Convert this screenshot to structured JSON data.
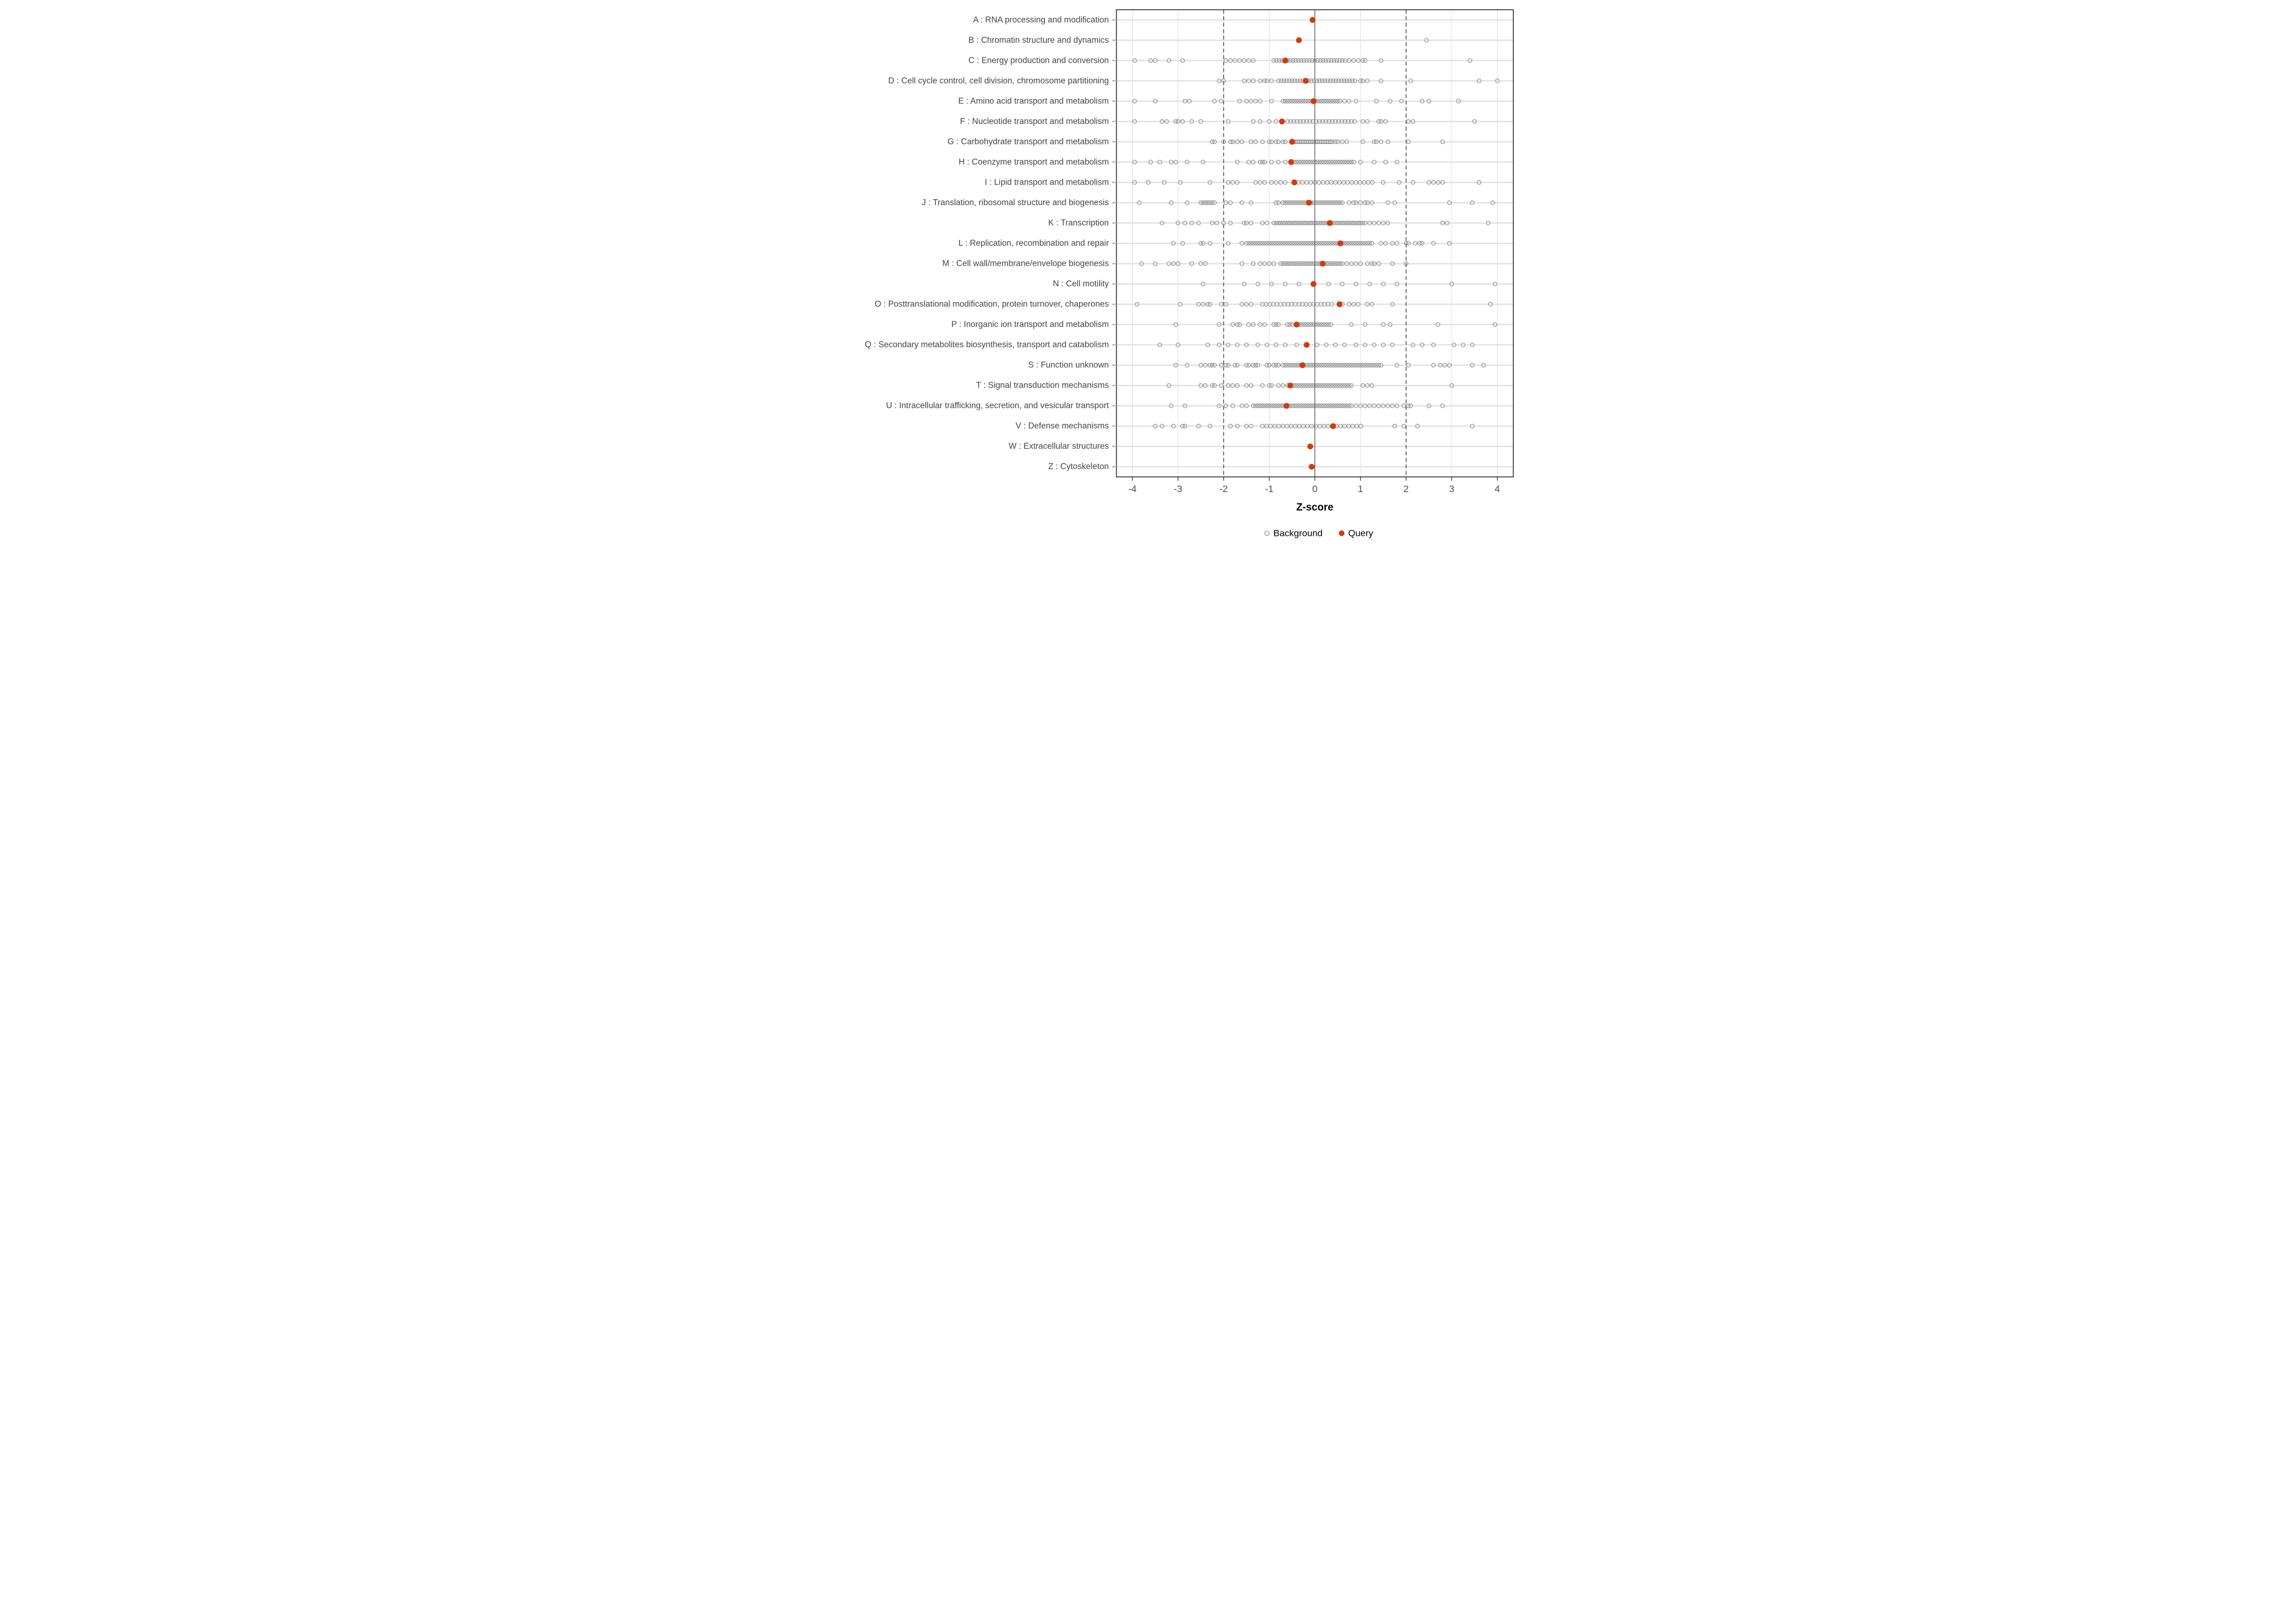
{
  "chart_data": {
    "type": "scatter",
    "variant": "horizontal-strip-plot",
    "title": "",
    "xlabel": "Z-score",
    "ylabel": "",
    "x_ticks": [
      -4,
      -3,
      -2,
      -1,
      0,
      1,
      2,
      3,
      4
    ],
    "xlim": [
      -4.35,
      4.35
    ],
    "grid": "on",
    "reference_lines": {
      "solid": [
        0
      ],
      "dashed": [
        -2,
        2
      ]
    },
    "legend_position": "bottom",
    "legend": [
      {
        "label": "Background",
        "marker": "open-circle",
        "color": "#8A8A8A"
      },
      {
        "label": "Query",
        "marker": "filled-circle",
        "color": "#D23B0F"
      }
    ],
    "colors": {
      "query": "#D23B0F",
      "background_stroke": "#8A8A8A",
      "grid": "#E2E2E2",
      "reference": "#4A4A4A",
      "axis_text": "#4D4D4D",
      "category_text": "#444444",
      "panel_border": "#2D2D2D",
      "axis_title": "#000000",
      "tick_mark_x": "#333333",
      "tick_mark_y": "#B5B5B5"
    },
    "categories": [
      {
        "code": "A",
        "label": "A : RNA processing and modification",
        "query": -0.05,
        "background": []
      },
      {
        "code": "B",
        "label": "B : Chromatin structure and dynamics",
        "query": -0.35,
        "background": [
          2.45
        ]
      },
      {
        "code": "C",
        "label": "C : Energy production and conversion",
        "query": -0.65,
        "background": [
          -3.95,
          -3.6,
          -3.5,
          -3.2,
          -2.9,
          -1.95,
          -1.85,
          -1.75,
          -1.65,
          -1.55,
          -1.45,
          -1.35,
          -0.9,
          -0.84,
          -0.78,
          -0.72,
          -0.66,
          -0.6,
          -0.54,
          -0.48,
          -0.42,
          -0.36,
          -0.3,
          -0.24,
          -0.18,
          -0.12,
          -0.06,
          0,
          0.06,
          0.12,
          0.18,
          0.24,
          0.3,
          0.36,
          0.42,
          0.48,
          0.54,
          0.6,
          0.66,
          0.75,
          0.85,
          0.95,
          1.05,
          1.1,
          1.45,
          3.4
        ]
      },
      {
        "code": "D",
        "label": "D : Cell cycle control, cell division, chromosome partitioning",
        "query": -0.2,
        "background": [
          -2.1,
          -2,
          -1.55,
          -1.45,
          -1.35,
          -1.2,
          -1.1,
          -1.05,
          -0.95,
          -0.8,
          -0.74,
          -0.68,
          -0.62,
          -0.56,
          -0.5,
          -0.44,
          -0.38,
          -0.32,
          -0.26,
          -0.2,
          -0.14,
          -0.08,
          -0.02,
          0.04,
          0.1,
          0.16,
          0.22,
          0.28,
          0.34,
          0.4,
          0.46,
          0.52,
          0.58,
          0.64,
          0.7,
          0.76,
          0.82,
          0.88,
          1,
          1.05,
          1.15,
          1.45,
          2.1,
          3.6,
          4
        ]
      },
      {
        "code": "E",
        "label": "E : Amino acid transport and metabolism",
        "query": -0.03,
        "background": [
          -3.95,
          -3.5,
          -2.85,
          -2.75,
          -2.2,
          -2.05,
          -1.65,
          -1.5,
          -1.4,
          -1.3,
          -1.2,
          -0.95,
          -0.7,
          -0.65,
          -0.6,
          -0.55,
          -0.5,
          -0.45,
          -0.4,
          -0.35,
          -0.3,
          -0.25,
          -0.2,
          -0.15,
          -0.1,
          -0.05,
          0,
          0.05,
          0.1,
          0.15,
          0.2,
          0.25,
          0.3,
          0.35,
          0.4,
          0.45,
          0.5,
          0.55,
          0.65,
          0.75,
          0.9,
          1.35,
          1.65,
          1.9,
          2.35,
          2.5,
          3.15
        ]
      },
      {
        "code": "F",
        "label": "F : Nucleotide transport and metabolism",
        "query": -0.72,
        "background": [
          -3.95,
          -3.35,
          -3.25,
          -3.05,
          -3,
          -2.9,
          -2.7,
          -2.5,
          -1.9,
          -1.35,
          -1.2,
          -1,
          -0.85,
          -0.6,
          -0.53,
          -0.46,
          -0.39,
          -0.32,
          -0.25,
          -0.18,
          -0.11,
          -0.04,
          0.03,
          0.1,
          0.17,
          0.24,
          0.31,
          0.38,
          0.45,
          0.52,
          0.59,
          0.66,
          0.73,
          0.8,
          0.87,
          1.05,
          1.15,
          1.4,
          1.45,
          1.55,
          2.05,
          2.15,
          3.5
        ]
      },
      {
        "code": "G",
        "label": "G : Carbohydrate transport and metabolism",
        "query": -0.5,
        "background": [
          -2.25,
          -2.2,
          -2,
          -1.85,
          -1.8,
          -1.7,
          -1.6,
          -1.4,
          -1.3,
          -1.15,
          -1,
          -0.95,
          -0.85,
          -0.8,
          -0.7,
          -0.65,
          -0.5,
          -0.46,
          -0.42,
          -0.38,
          -0.34,
          -0.3,
          -0.26,
          -0.22,
          -0.18,
          -0.14,
          -0.1,
          -0.06,
          -0.02,
          0.02,
          0.06,
          0.1,
          0.14,
          0.18,
          0.22,
          0.26,
          0.3,
          0.34,
          0.38,
          0.45,
          0.5,
          0.6,
          0.7,
          1.05,
          1.3,
          1.35,
          1.45,
          1.6,
          2.05,
          2.8
        ]
      },
      {
        "code": "H",
        "label": "H : Coenzyme transport and metabolism",
        "query": -0.52,
        "background": [
          -3.95,
          -3.6,
          -3.4,
          -3.15,
          -3.05,
          -2.8,
          -2.45,
          -1.7,
          -1.45,
          -1.35,
          -1.2,
          -1.15,
          -1.1,
          -0.95,
          -0.8,
          -0.65,
          -0.45,
          -0.4,
          -0.35,
          -0.3,
          -0.25,
          -0.2,
          -0.15,
          -0.1,
          -0.05,
          0,
          0.05,
          0.1,
          0.15,
          0.2,
          0.25,
          0.3,
          0.35,
          0.4,
          0.45,
          0.5,
          0.55,
          0.6,
          0.65,
          0.7,
          0.75,
          0.8,
          0.85,
          1,
          1.3,
          1.55,
          1.8
        ]
      },
      {
        "code": "I",
        "label": "I : Lipid transport and metabolism",
        "query": -0.45,
        "background": [
          -3.95,
          -3.65,
          -3.3,
          -2.95,
          -2.3,
          -1.9,
          -1.8,
          -1.7,
          -1.3,
          -1.2,
          -1.1,
          -0.95,
          -0.85,
          -0.75,
          -0.65,
          -0.45,
          -0.36,
          -0.27,
          -0.18,
          -0.09,
          0,
          0.09,
          0.18,
          0.27,
          0.36,
          0.45,
          0.54,
          0.63,
          0.72,
          0.81,
          0.9,
          0.99,
          1.08,
          1.17,
          1.26,
          1.5,
          1.85,
          2.15,
          2.5,
          2.6,
          2.7,
          2.8,
          3.6
        ]
      },
      {
        "code": "J",
        "label": "J : Translation, ribosomal structure and biogenesis",
        "query": -0.13,
        "background": [
          -3.85,
          -3.15,
          -2.8,
          -2.5,
          -2.45,
          -2.4,
          -2.35,
          -2.3,
          -2.25,
          -2.2,
          -1.95,
          -1.85,
          -1.6,
          -1.4,
          -0.85,
          -0.8,
          -0.7,
          -0.65,
          -0.6,
          -0.55,
          -0.5,
          -0.45,
          -0.4,
          -0.35,
          -0.3,
          -0.25,
          -0.2,
          -0.15,
          -0.1,
          -0.05,
          0,
          0.05,
          0.1,
          0.15,
          0.2,
          0.25,
          0.3,
          0.35,
          0.4,
          0.45,
          0.5,
          0.55,
          0.6,
          0.75,
          0.85,
          0.9,
          1,
          1.1,
          1.15,
          1.25,
          1.6,
          1.75,
          2.95,
          3.45,
          3.9
        ]
      },
      {
        "code": "K",
        "label": "K : Transcription",
        "query": 0.33,
        "background": [
          -3.35,
          -3,
          -2.85,
          -2.7,
          -2.55,
          -2.25,
          -2.15,
          -2,
          -1.85,
          -1.55,
          -1.5,
          -1.4,
          -1.15,
          -1.05,
          -0.9,
          -0.85,
          -0.8,
          -0.75,
          -0.7,
          -0.65,
          -0.6,
          -0.55,
          -0.5,
          -0.45,
          -0.4,
          -0.35,
          -0.3,
          -0.25,
          -0.2,
          -0.15,
          -0.1,
          -0.05,
          0,
          0.05,
          0.1,
          0.15,
          0.2,
          0.25,
          0.3,
          0.35,
          0.4,
          0.45,
          0.5,
          0.55,
          0.6,
          0.65,
          0.7,
          0.75,
          0.8,
          0.85,
          0.9,
          0.95,
          1,
          1.05,
          1.1,
          1.2,
          1.3,
          1.4,
          1.5,
          1.6,
          2.8,
          2.9,
          3.8
        ]
      },
      {
        "code": "L",
        "label": "L : Replication, recombination and repair",
        "query": 0.56,
        "background": [
          -3.1,
          -2.9,
          -2.5,
          -2.45,
          -2.3,
          -1.9,
          -1.6,
          -1.5,
          -1.45,
          -1.4,
          -1.35,
          -1.3,
          -1.25,
          -1.2,
          -1.15,
          -1.1,
          -1.05,
          -1,
          -0.95,
          -0.9,
          -0.85,
          -0.8,
          -0.75,
          -0.7,
          -0.65,
          -0.6,
          -0.55,
          -0.5,
          -0.45,
          -0.4,
          -0.35,
          -0.3,
          -0.25,
          -0.2,
          -0.15,
          -0.1,
          -0.05,
          0,
          0.05,
          0.1,
          0.15,
          0.2,
          0.25,
          0.3,
          0.35,
          0.4,
          0.45,
          0.5,
          0.55,
          0.6,
          0.65,
          0.7,
          0.75,
          0.8,
          0.85,
          0.9,
          0.95,
          1,
          1.05,
          1.1,
          1.15,
          1.2,
          1.25,
          1.45,
          1.55,
          1.7,
          1.8,
          2,
          2.05,
          2.2,
          2.3,
          2.35,
          2.6,
          2.95
        ]
      },
      {
        "code": "M",
        "label": "M : Cell wall/membrane/envelope biogenesis",
        "query": 0.17,
        "background": [
          -3.8,
          -3.5,
          -3.2,
          -3.1,
          -3,
          -2.7,
          -2.5,
          -2.4,
          -1.6,
          -1.35,
          -1.2,
          -1.1,
          -1,
          -0.9,
          -0.75,
          -0.7,
          -0.65,
          -0.6,
          -0.55,
          -0.5,
          -0.45,
          -0.4,
          -0.35,
          -0.3,
          -0.25,
          -0.2,
          -0.15,
          -0.1,
          -0.05,
          0,
          0.05,
          0.1,
          0.15,
          0.2,
          0.25,
          0.3,
          0.35,
          0.4,
          0.45,
          0.5,
          0.55,
          0.6,
          0.7,
          0.8,
          0.9,
          1,
          1.15,
          1.25,
          1.3,
          1.4,
          1.7,
          2
        ]
      },
      {
        "code": "N",
        "label": "N : Cell motility",
        "query": -0.03,
        "background": [
          -2.45,
          -1.55,
          -1.25,
          -0.95,
          -0.65,
          -0.35,
          0.3,
          0.6,
          0.9,
          1.2,
          1.5,
          1.8,
          3,
          3.95
        ]
      },
      {
        "code": "O",
        "label": "O : Posttranslational modification, protein turnover, chaperones",
        "query": 0.54,
        "background": [
          -3.9,
          -2.95,
          -2.55,
          -2.45,
          -2.35,
          -2.3,
          -2.05,
          -1.95,
          -1.6,
          -1.5,
          -1.4,
          -1.15,
          -1.07,
          -0.99,
          -0.91,
          -0.83,
          -0.75,
          -0.67,
          -0.59,
          -0.51,
          -0.43,
          -0.35,
          -0.27,
          -0.19,
          -0.11,
          -0.03,
          0.05,
          0.13,
          0.21,
          0.29,
          0.37,
          0.6,
          0.75,
          0.85,
          0.95,
          1.15,
          1.25,
          1.7,
          3.85
        ]
      },
      {
        "code": "P",
        "label": "P : Inorganic ion transport and metabolism",
        "query": -0.4,
        "background": [
          -3.05,
          -2.1,
          -1.8,
          -1.7,
          -1.65,
          -1.45,
          -1.35,
          -1.2,
          -1.1,
          -0.9,
          -0.85,
          -0.8,
          -0.6,
          -0.55,
          -0.5,
          -0.4,
          -0.35,
          -0.3,
          -0.25,
          -0.2,
          -0.15,
          -0.1,
          -0.05,
          0,
          0.05,
          0.1,
          0.15,
          0.2,
          0.25,
          0.3,
          0.35,
          0.8,
          1.1,
          1.5,
          1.65,
          2.7,
          3.95
        ]
      },
      {
        "code": "Q",
        "label": "Q : Secondary metabolites biosynthesis, transport and catabolism",
        "query": -0.18,
        "background": [
          -3.4,
          -3,
          -2.35,
          -2.1,
          -1.9,
          -1.7,
          -1.5,
          -1.25,
          -1.05,
          -0.85,
          -0.65,
          -0.4,
          0.05,
          0.25,
          0.45,
          0.65,
          0.9,
          1.1,
          1.3,
          1.5,
          1.7,
          2.15,
          2.35,
          2.6,
          3.05,
          3.25,
          3.45
        ]
      },
      {
        "code": "S",
        "label": "S : Function unknown",
        "query": -0.27,
        "background": [
          -3.05,
          -2.8,
          -2.5,
          -2.4,
          -2.3,
          -2.25,
          -2.2,
          -2.05,
          -1.95,
          -1.9,
          -1.75,
          -1.7,
          -1.5,
          -1.45,
          -1.35,
          -1.3,
          -1.25,
          -1.05,
          -1,
          -0.9,
          -0.85,
          -0.8,
          -0.7,
          -0.65,
          -0.6,
          -0.55,
          -0.5,
          -0.45,
          -0.4,
          -0.35,
          -0.3,
          -0.25,
          -0.2,
          -0.15,
          -0.1,
          -0.05,
          0,
          0.05,
          0.1,
          0.15,
          0.2,
          0.25,
          0.3,
          0.35,
          0.4,
          0.45,
          0.5,
          0.55,
          0.6,
          0.65,
          0.7,
          0.75,
          0.8,
          0.85,
          0.9,
          0.95,
          1,
          1.05,
          1.1,
          1.15,
          1.2,
          1.25,
          1.3,
          1.35,
          1.4,
          1.45,
          1.8,
          2.05,
          2.6,
          2.75,
          2.85,
          2.95,
          3.45,
          3.7
        ]
      },
      {
        "code": "T",
        "label": "T : Signal transduction mechanisms",
        "query": -0.54,
        "background": [
          -3.2,
          -2.5,
          -2.4,
          -2.25,
          -2.2,
          -2.05,
          -1.9,
          -1.8,
          -1.7,
          -1.5,
          -1.4,
          -1.15,
          -1,
          -0.95,
          -0.8,
          -0.7,
          -0.6,
          -0.55,
          -0.5,
          -0.45,
          -0.4,
          -0.35,
          -0.3,
          -0.25,
          -0.2,
          -0.15,
          -0.1,
          -0.05,
          0,
          0.05,
          0.1,
          0.15,
          0.2,
          0.25,
          0.3,
          0.35,
          0.4,
          0.45,
          0.5,
          0.55,
          0.6,
          0.65,
          0.7,
          0.75,
          0.8,
          1.05,
          1.15,
          1.25,
          3
        ]
      },
      {
        "code": "U",
        "label": "U : Intracellular trafficking, secretion, and vesicular transport",
        "query": -0.62,
        "background": [
          -3.15,
          -2.85,
          -2.1,
          -1.95,
          -1.8,
          -1.6,
          -1.5,
          -1.35,
          -1.3,
          -1.25,
          -1.2,
          -1.15,
          -1.1,
          -1.05,
          -1,
          -0.95,
          -0.9,
          -0.85,
          -0.8,
          -0.75,
          -0.7,
          -0.65,
          -0.6,
          -0.55,
          -0.5,
          -0.45,
          -0.4,
          -0.35,
          -0.3,
          -0.25,
          -0.2,
          -0.15,
          -0.1,
          -0.05,
          0,
          0.05,
          0.1,
          0.15,
          0.2,
          0.25,
          0.3,
          0.35,
          0.4,
          0.45,
          0.5,
          0.55,
          0.6,
          0.65,
          0.7,
          0.75,
          0.8,
          0.9,
          1,
          1.1,
          1.2,
          1.3,
          1.4,
          1.5,
          1.6,
          1.7,
          1.8,
          1.95,
          2.05,
          2.1,
          2.5,
          2.8
        ]
      },
      {
        "code": "V",
        "label": "V : Defense mechanisms",
        "query": 0.4,
        "background": [
          -3.5,
          -3.35,
          -3.1,
          -2.9,
          -2.85,
          -2.55,
          -2.3,
          -1.85,
          -1.7,
          -1.5,
          -1.4,
          -1.15,
          -1.06,
          -0.97,
          -0.88,
          -0.79,
          -0.7,
          -0.61,
          -0.52,
          -0.43,
          -0.34,
          -0.25,
          -0.16,
          -0.07,
          0.02,
          0.11,
          0.2,
          0.29,
          0.38,
          0.47,
          0.56,
          0.65,
          0.74,
          0.83,
          0.92,
          1.01,
          1.75,
          1.95,
          2.25,
          3.45
        ]
      },
      {
        "code": "W",
        "label": "W : Extracellular structures",
        "query": -0.1,
        "background": []
      },
      {
        "code": "Z",
        "label": "Z : Cytoskeleton",
        "query": -0.07,
        "background": []
      }
    ]
  }
}
